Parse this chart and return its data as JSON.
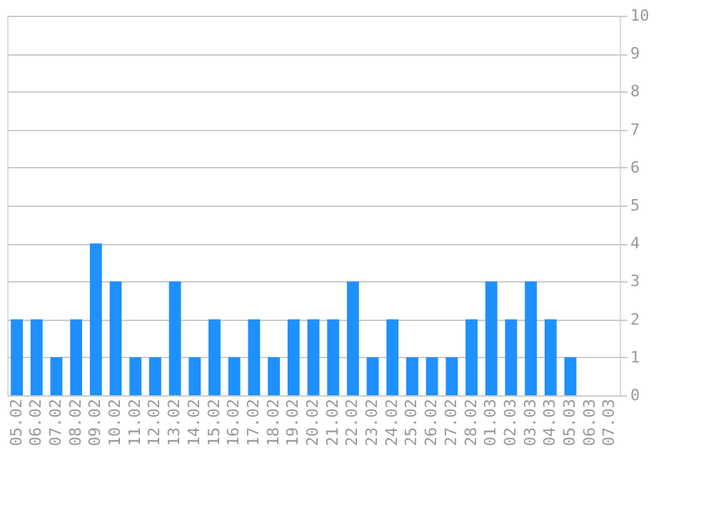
{
  "chart_data": {
    "type": "bar",
    "categories": [
      "05.02",
      "06.02",
      "07.02",
      "08.02",
      "09.02",
      "10.02",
      "11.02",
      "12.02",
      "13.02",
      "14.02",
      "15.02",
      "16.02",
      "17.02",
      "18.02",
      "19.02",
      "20.02",
      "21.02",
      "22.02",
      "23.02",
      "24.02",
      "25.02",
      "26.02",
      "27.02",
      "28.02",
      "01.03",
      "02.03",
      "03.03",
      "04.03",
      "05.03",
      "06.03",
      "07.03"
    ],
    "values": [
      2,
      2,
      1,
      2,
      4,
      3,
      1,
      1,
      3,
      1,
      2,
      1,
      2,
      1,
      2,
      2,
      2,
      3,
      1,
      2,
      1,
      1,
      1,
      2,
      3,
      2,
      3,
      2,
      1,
      0,
      0
    ],
    "color": "#1e90ff",
    "ylim": [
      0,
      10
    ],
    "yticks": [
      0,
      1,
      2,
      3,
      4,
      5,
      6,
      7,
      8,
      9,
      10
    ],
    "grid": "y"
  }
}
